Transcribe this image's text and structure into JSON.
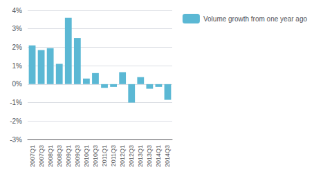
{
  "chart_data": {
    "type": "bar",
    "categories": [
      "2007Q1",
      "2007Q3",
      "2008Q1",
      "2008Q3",
      "2009Q1",
      "2009Q3",
      "2010Q1",
      "2010Q3",
      "2011Q1",
      "2011Q3",
      "2012Q1",
      "2012Q3",
      "2013Q1",
      "2013Q3",
      "2014Q1",
      "2014Q3"
    ],
    "series": [
      {
        "name": "Volume growth from one year ago",
        "color": "#5BB8D4",
        "values": [
          2.1,
          1.85,
          1.95,
          1.1,
          3.6,
          2.5,
          0.3,
          0.6,
          -0.2,
          -0.15,
          0.65,
          -1.0,
          0.38,
          -0.25,
          -0.15,
          -0.85
        ]
      }
    ],
    "ylim": [
      -3,
      4
    ],
    "yticks": [
      {
        "value": -3,
        "label": "-3%"
      },
      {
        "value": -2,
        "label": "-2%"
      },
      {
        "value": -1,
        "label": "-1%"
      },
      {
        "value": 0,
        "label": "0%"
      },
      {
        "value": 1,
        "label": "1%"
      },
      {
        "value": 2,
        "label": "2%"
      },
      {
        "value": 3,
        "label": "3%"
      },
      {
        "value": 4,
        "label": "4%"
      }
    ],
    "grid": true,
    "legend": "right"
  }
}
